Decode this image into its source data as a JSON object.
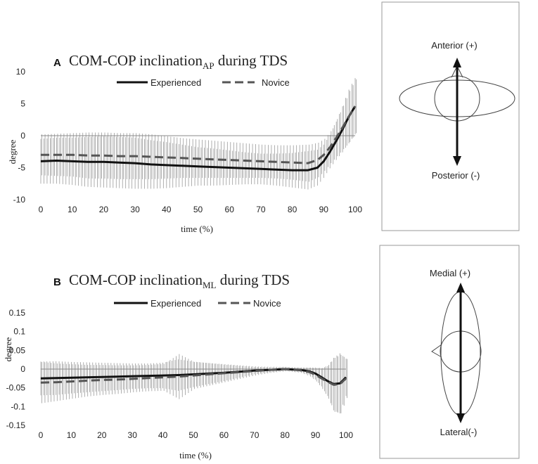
{
  "chart_data": [
    {
      "type": "line",
      "panel_label": "A",
      "title_main": "COM-COP inclination",
      "title_subscript": "AP",
      "title_suffix": " during TDS",
      "xlabel": "time (%)",
      "ylabel": "degree",
      "xlim": [
        0,
        100
      ],
      "ylim": [
        -10,
        10
      ],
      "xticks": [
        0,
        10,
        20,
        30,
        40,
        50,
        60,
        70,
        80,
        90,
        100
      ],
      "yticks": [
        10,
        5,
        0,
        -5,
        -10
      ],
      "ytick_labels": [
        "10",
        "5",
        "0",
        "-5",
        "-10"
      ],
      "legend": [
        "Experienced",
        "Novice"
      ],
      "series": [
        {
          "name": "Experienced",
          "style": "solid",
          "x": [
            0,
            5,
            10,
            15,
            20,
            25,
            30,
            35,
            40,
            45,
            50,
            55,
            60,
            65,
            70,
            75,
            80,
            85,
            88,
            90,
            92,
            94,
            96,
            98,
            100
          ],
          "y": [
            -4.0,
            -3.9,
            -4.0,
            -4.1,
            -4.1,
            -4.2,
            -4.3,
            -4.5,
            -4.6,
            -4.7,
            -4.8,
            -4.9,
            -5.0,
            -5.1,
            -5.2,
            -5.3,
            -5.4,
            -5.4,
            -5.0,
            -4.0,
            -2.5,
            -0.8,
            1.0,
            3.0,
            4.6
          ],
          "error": [
            3.5,
            3.6,
            3.7,
            3.9,
            4.0,
            4.0,
            4.0,
            3.8,
            3.6,
            3.3,
            3.0,
            2.9,
            2.7,
            2.5,
            2.4,
            2.5,
            2.7,
            3.0,
            2.8,
            2.6,
            2.6,
            3.0,
            3.6,
            4.2,
            4.4
          ]
        },
        {
          "name": "Novice",
          "style": "dashed",
          "x": [
            0,
            5,
            10,
            15,
            20,
            25,
            30,
            35,
            40,
            45,
            50,
            55,
            60,
            65,
            70,
            75,
            80,
            85,
            88,
            90,
            92,
            94,
            96,
            98,
            100
          ],
          "y": [
            -3.0,
            -3.0,
            -3.0,
            -3.1,
            -3.1,
            -3.2,
            -3.2,
            -3.3,
            -3.4,
            -3.5,
            -3.6,
            -3.7,
            -3.8,
            -3.9,
            -4.0,
            -4.1,
            -4.2,
            -4.3,
            -3.8,
            -3.0,
            -1.8,
            -0.3,
            1.3,
            3.0,
            4.6
          ],
          "error": [
            3.2,
            3.3,
            3.4,
            3.6,
            3.6,
            3.6,
            3.6,
            3.5,
            3.3,
            3.1,
            3.0,
            2.9,
            2.8,
            2.7,
            2.6,
            2.6,
            2.7,
            2.9,
            2.7,
            2.5,
            2.5,
            2.9,
            3.4,
            4.0,
            4.2
          ]
        }
      ]
    },
    {
      "type": "line",
      "panel_label": "B",
      "title_main": "COM-COP inclination",
      "title_subscript": "ML",
      "title_suffix": " during TDS",
      "xlabel": "time (%)",
      "ylabel": "degree",
      "xlim": [
        0,
        100
      ],
      "ylim": [
        -0.15,
        0.15
      ],
      "xticks": [
        0,
        10,
        20,
        30,
        40,
        50,
        60,
        70,
        80,
        90,
        100
      ],
      "yticks": [
        0.15,
        0.1,
        0.05,
        0,
        -0.05,
        -0.1,
        -0.15
      ],
      "ytick_labels": [
        "0.15",
        "0.1",
        "0.05",
        "0",
        "-0.05",
        "-0.1",
        "-0.15"
      ],
      "legend": [
        "Experienced",
        "Novice"
      ],
      "series": [
        {
          "name": "Experienced",
          "style": "solid",
          "x": [
            0,
            5,
            10,
            15,
            20,
            25,
            30,
            35,
            40,
            45,
            50,
            55,
            60,
            65,
            70,
            75,
            80,
            85,
            88,
            90,
            92,
            94,
            96,
            98,
            100
          ],
          "y": [
            -0.025,
            -0.024,
            -0.023,
            -0.022,
            -0.021,
            -0.02,
            -0.019,
            -0.018,
            -0.017,
            -0.016,
            -0.014,
            -0.012,
            -0.01,
            -0.007,
            -0.004,
            -0.002,
            0.0,
            -0.002,
            -0.006,
            -0.012,
            -0.022,
            -0.032,
            -0.04,
            -0.038,
            -0.022
          ],
          "error": [
            0.045,
            0.045,
            0.042,
            0.04,
            0.038,
            0.036,
            0.034,
            0.033,
            0.034,
            0.042,
            0.034,
            0.028,
            0.022,
            0.016,
            0.01,
            0.007,
            0.005,
            0.006,
            0.01,
            0.016,
            0.024,
            0.04,
            0.07,
            0.08,
            0.05
          ]
        },
        {
          "name": "Novice",
          "style": "dashed",
          "x": [
            0,
            5,
            10,
            15,
            20,
            25,
            30,
            35,
            40,
            45,
            50,
            55,
            60,
            65,
            70,
            75,
            80,
            85,
            88,
            90,
            92,
            94,
            96,
            98,
            100
          ],
          "y": [
            -0.036,
            -0.035,
            -0.033,
            -0.031,
            -0.029,
            -0.028,
            -0.026,
            -0.024,
            -0.022,
            -0.02,
            -0.017,
            -0.014,
            -0.011,
            -0.008,
            -0.005,
            -0.002,
            0.0,
            -0.003,
            -0.008,
            -0.015,
            -0.025,
            -0.034,
            -0.042,
            -0.04,
            -0.025
          ],
          "error": [
            0.055,
            0.05,
            0.046,
            0.042,
            0.04,
            0.038,
            0.036,
            0.035,
            0.036,
            0.06,
            0.036,
            0.03,
            0.024,
            0.018,
            0.012,
            0.008,
            0.006,
            0.007,
            0.012,
            0.018,
            0.028,
            0.045,
            0.072,
            0.078,
            0.052
          ]
        }
      ]
    }
  ],
  "diagrams": {
    "ap": {
      "top_label": "Anterior (+)",
      "bottom_label": "Posterior (-)"
    },
    "ml": {
      "top_label": "Medial (+)",
      "bottom_label": "Lateral(-)"
    }
  },
  "colors": {
    "line": "#111111",
    "dash": "#555555",
    "errorbar": "#8a8a8a",
    "axis": "#888888",
    "box": "#9a9a9a"
  }
}
